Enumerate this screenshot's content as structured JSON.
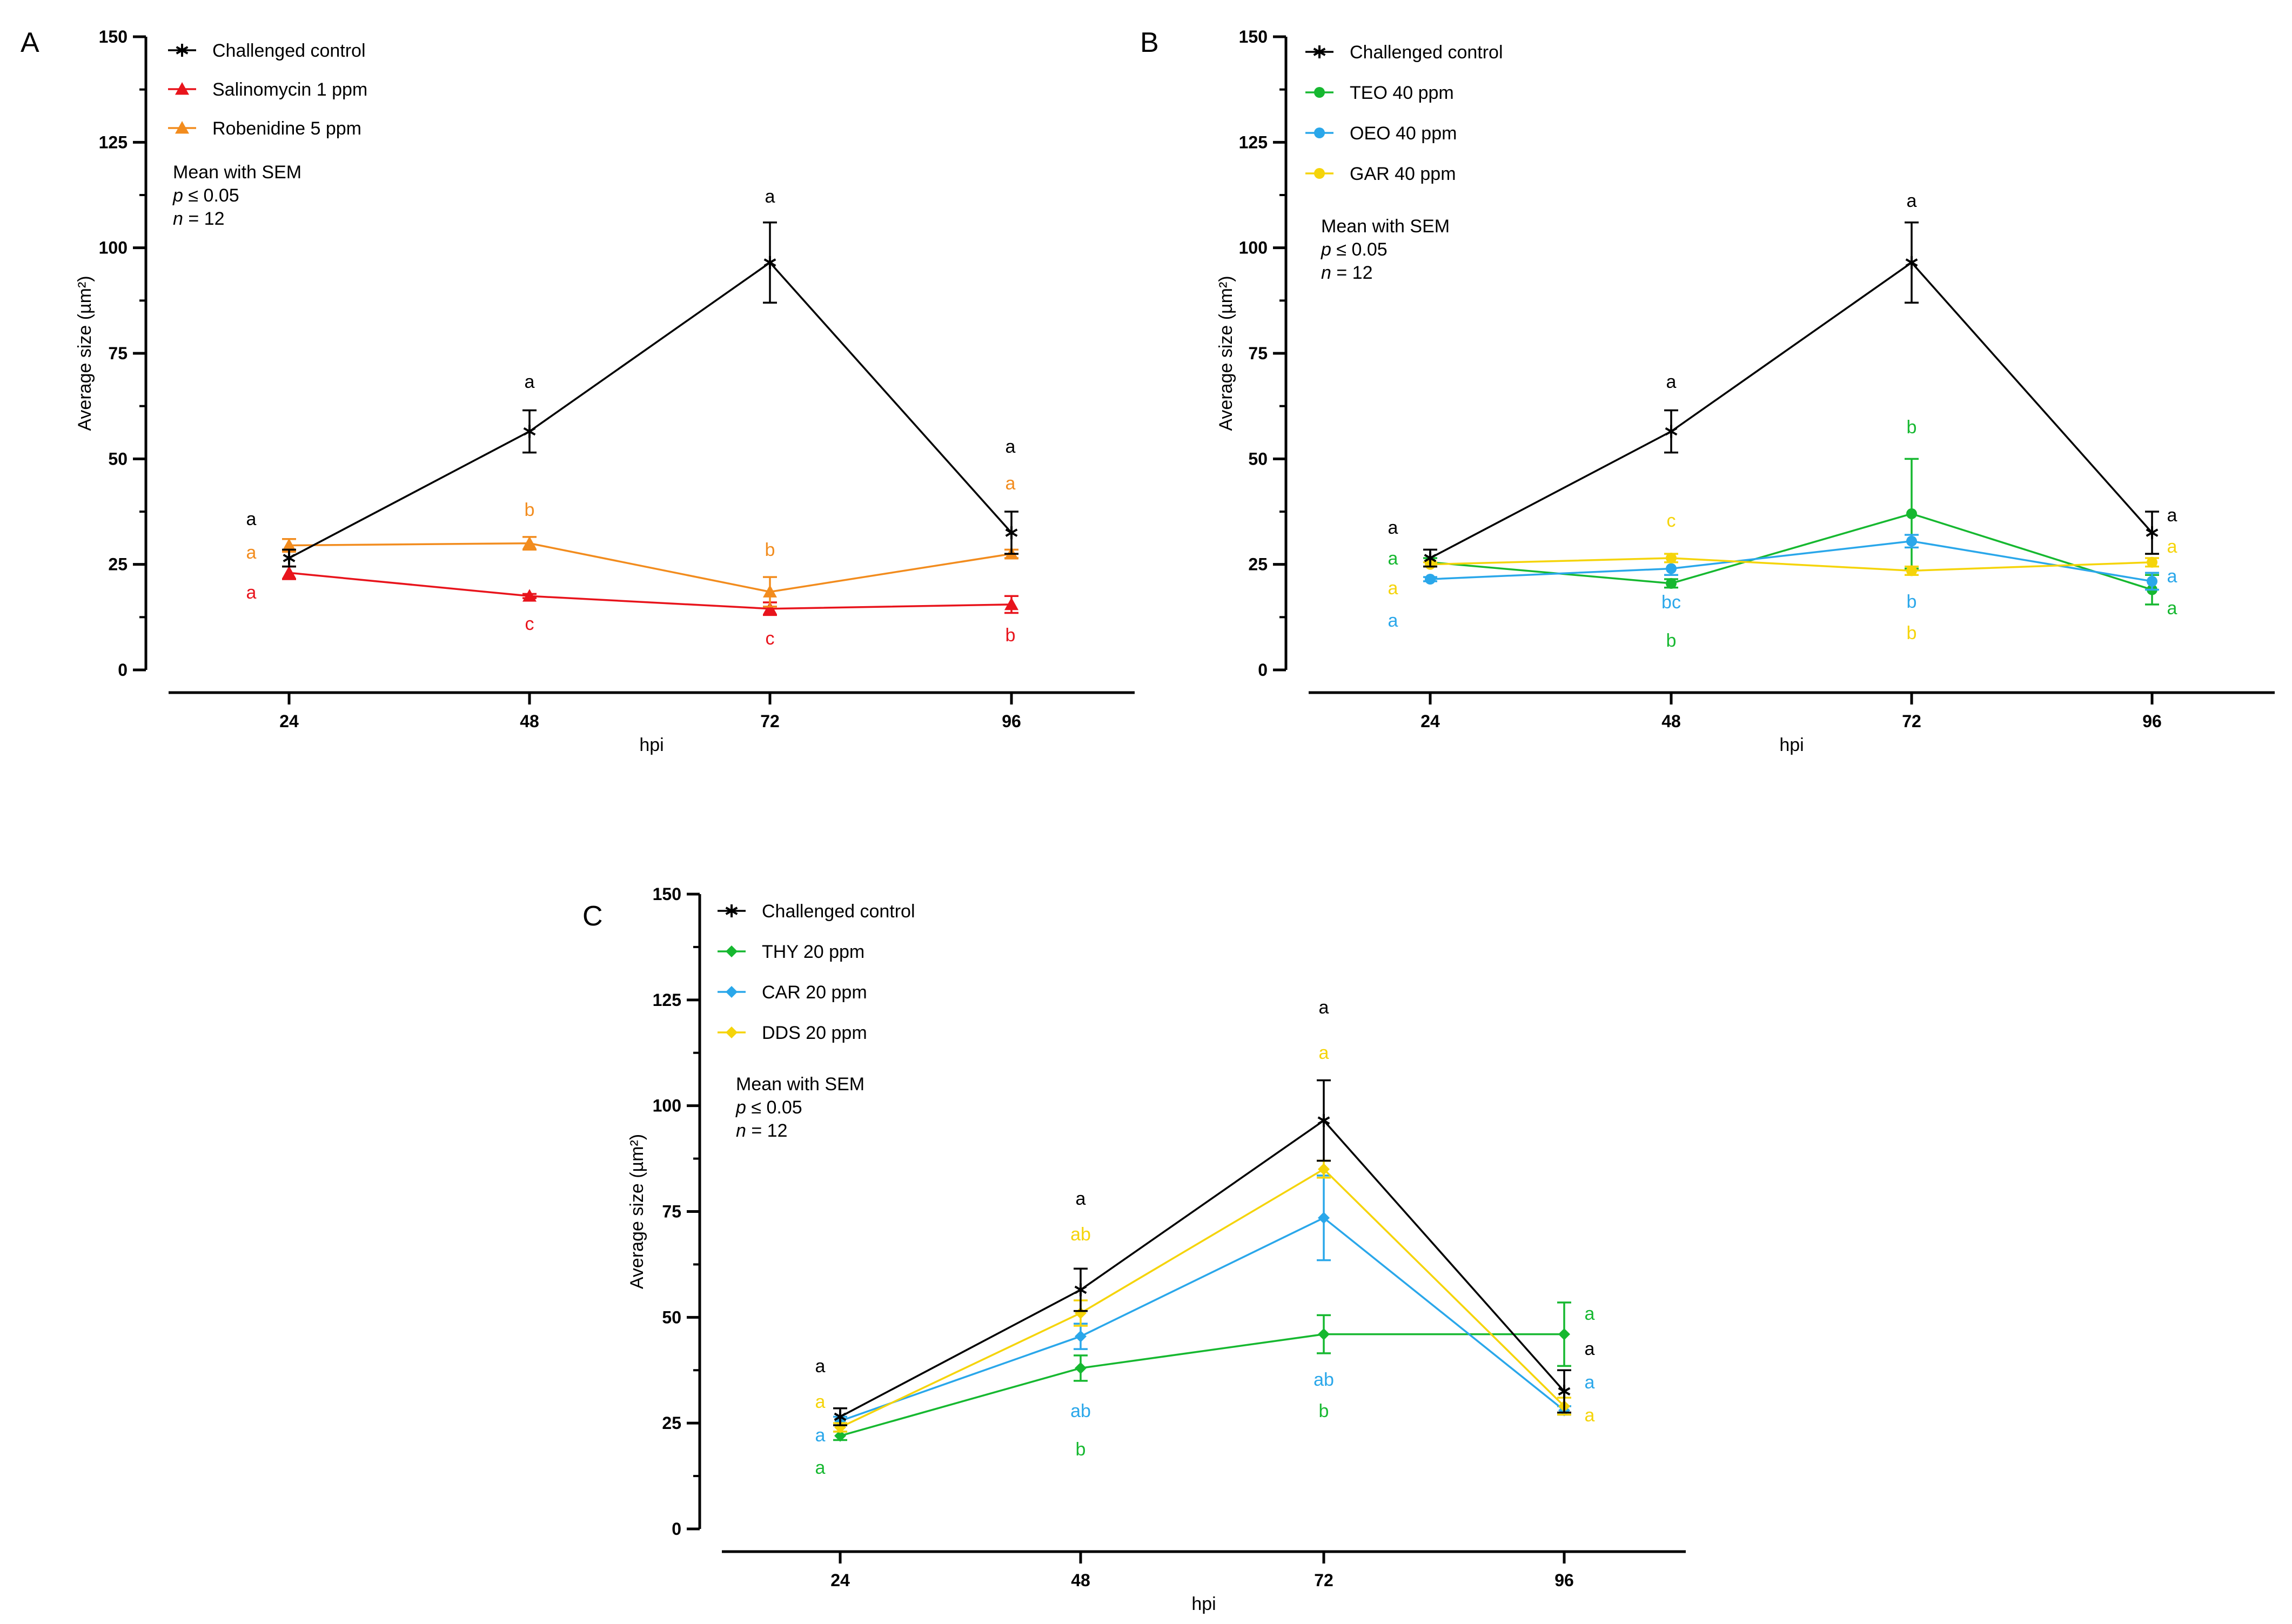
{
  "chart_data": [
    {
      "panel": "A",
      "type": "line",
      "xlabel": "hpi",
      "ylabel": "Average size (µm²)",
      "ylim": [
        0,
        150
      ],
      "yticks": [
        0,
        25,
        50,
        75,
        100,
        125,
        150
      ],
      "categories": [
        "24",
        "48",
        "72",
        "96"
      ],
      "stats": {
        "line1": "Mean with SEM",
        "p_prefix": "p",
        "p_rest": " ≤ 0.05",
        "n_prefix": "n",
        "n_rest": "  = 12"
      },
      "series": [
        {
          "name": "Challenged control",
          "color": "#000000",
          "marker": "star",
          "values": [
            26.5,
            56.5,
            96.5,
            32.5
          ],
          "sem": [
            2,
            5,
            9.5,
            5
          ],
          "letters": [
            "a",
            "a",
            "a",
            "a"
          ]
        },
        {
          "name": "Salinomycin 1 ppm",
          "color": "#e8141c",
          "marker": "triangle",
          "values": [
            23,
            17.5,
            14.5,
            15.5
          ],
          "sem": [
            1.5,
            0.5,
            1.5,
            2
          ],
          "letters": [
            "a",
            "c",
            "c",
            "b"
          ]
        },
        {
          "name": "Robenidine 5 ppm",
          "color": "#f28c1e",
          "marker": "triangle",
          "values": [
            29.5,
            30,
            18.5,
            27.5
          ],
          "sem": [
            1.5,
            1.5,
            3.5,
            1
          ],
          "letters": [
            "a",
            "b",
            "b",
            "a"
          ]
        }
      ]
    },
    {
      "panel": "B",
      "type": "line",
      "xlabel": "hpi",
      "ylabel": "Average size (µm²)",
      "ylim": [
        0,
        150
      ],
      "yticks": [
        0,
        25,
        50,
        75,
        100,
        125,
        150
      ],
      "categories": [
        "24",
        "48",
        "72",
        "96"
      ],
      "stats": {
        "line1": "Mean with SEM",
        "p_prefix": "p",
        "p_rest": " ≤ 0.05",
        "n_prefix": "n",
        "n_rest": "  = 12"
      },
      "series": [
        {
          "name": "Challenged control",
          "color": "#000000",
          "marker": "star",
          "values": [
            26.5,
            56.5,
            96.5,
            32.5
          ],
          "sem": [
            2,
            5,
            9.5,
            5
          ],
          "letters": [
            "a",
            "a",
            "a",
            "a"
          ]
        },
        {
          "name": "TEO 40 ppm",
          "color": "#16b830",
          "marker": "circle",
          "values": [
            25.5,
            20.5,
            37,
            19
          ],
          "sem": [
            1,
            1,
            13,
            3.5
          ],
          "letters": [
            "a",
            "b",
            "b",
            "a"
          ]
        },
        {
          "name": "OEO 40 ppm",
          "color": "#2aa7ea",
          "marker": "circle",
          "values": [
            21.5,
            24,
            30.5,
            21
          ],
          "sem": [
            0.5,
            1.5,
            1.5,
            2
          ],
          "letters": [
            "a",
            "bc",
            "b",
            "a"
          ]
        },
        {
          "name": "GAR 40 ppm",
          "color": "#f5d40a",
          "marker": "circle",
          "values": [
            25,
            26.5,
            23.5,
            25.5
          ],
          "sem": [
            0.5,
            1,
            1,
            1
          ],
          "letters": [
            "a",
            "c",
            "b",
            "a"
          ]
        }
      ]
    },
    {
      "panel": "C",
      "type": "line",
      "xlabel": "hpi",
      "ylabel": "Average size (µm²)",
      "ylim": [
        0,
        150
      ],
      "yticks": [
        0,
        25,
        50,
        75,
        100,
        125,
        150
      ],
      "categories": [
        "24",
        "48",
        "72",
        "96"
      ],
      "stats": {
        "line1": "Mean with SEM",
        "p_prefix": "p",
        "p_rest": " ≤ 0.05",
        "n_prefix": "n",
        "n_rest": "  = 12"
      },
      "series": [
        {
          "name": "Challenged control",
          "color": "#000000",
          "marker": "star",
          "values": [
            26.5,
            56.5,
            96.5,
            32.5
          ],
          "sem": [
            2,
            5,
            9.5,
            5
          ],
          "letters": [
            "a",
            "a",
            "a",
            "a"
          ]
        },
        {
          "name": "THY 20 ppm",
          "color": "#16b830",
          "marker": "diamond",
          "values": [
            22,
            38,
            46,
            46
          ],
          "sem": [
            1,
            3,
            4.5,
            7.5
          ],
          "letters": [
            "a",
            "b",
            "b",
            "a"
          ]
        },
        {
          "name": "CAR 20 ppm",
          "color": "#2aa7ea",
          "marker": "diamond",
          "values": [
            25.5,
            45.5,
            73.5,
            28
          ],
          "sem": [
            1,
            3,
            10,
            1
          ],
          "letters": [
            "a",
            "ab",
            "ab",
            "a"
          ]
        },
        {
          "name": "DDS 20 ppm",
          "color": "#f5d40a",
          "marker": "diamond",
          "values": [
            24,
            51,
            85,
            29
          ],
          "sem": [
            1,
            3,
            2,
            2
          ],
          "letters": [
            "a",
            "ab",
            "a",
            "a"
          ]
        }
      ]
    }
  ]
}
